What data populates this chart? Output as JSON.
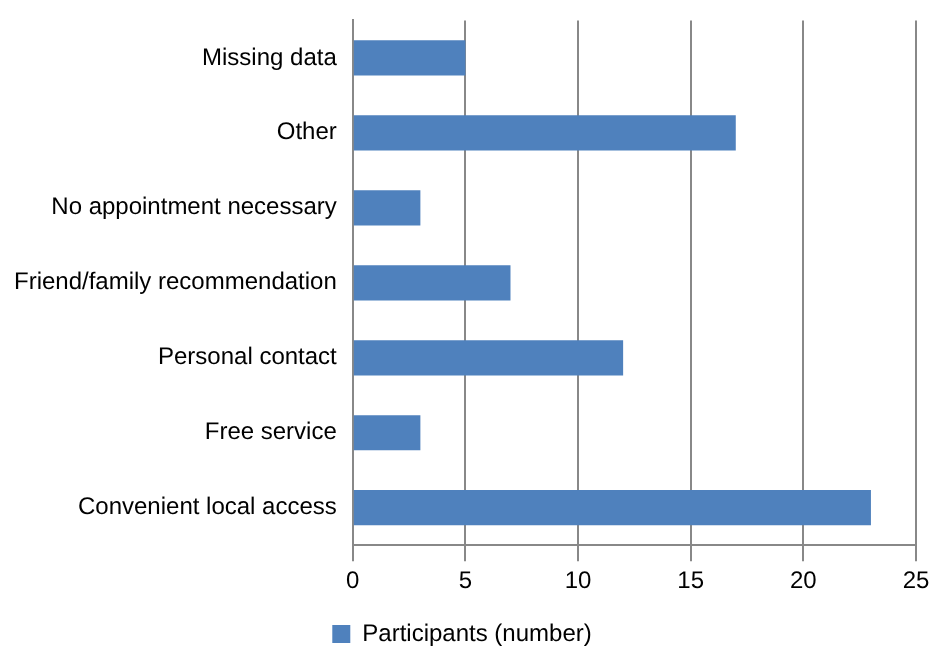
{
  "chart_data": {
    "type": "bar",
    "orientation": "horizontal",
    "categories": [
      "Missing data",
      "Other",
      "No appointment necessary",
      "Friend/family recommendation",
      "Personal contact",
      "Free service",
      "Convenient local access"
    ],
    "series": [
      {
        "name": "Participants (number)",
        "color": "#4f81bd",
        "values": [
          5,
          17,
          3,
          7,
          12,
          3,
          23
        ]
      }
    ],
    "xlim": [
      0,
      25
    ],
    "xticks": [
      0,
      5,
      10,
      15,
      20,
      25
    ],
    "grid": "x",
    "legend": "bottom"
  }
}
